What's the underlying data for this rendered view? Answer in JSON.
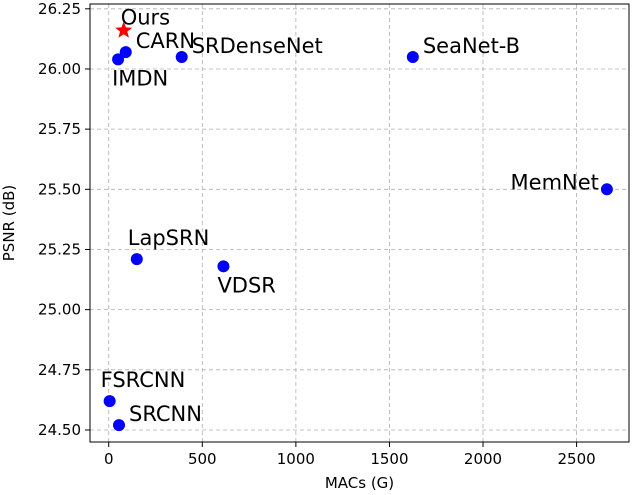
{
  "chart_data": {
    "type": "scatter",
    "xlabel": "MACs (G)",
    "ylabel": "PSNR (dB)",
    "xlim": [
      -100,
      2780
    ],
    "ylim": [
      24.45,
      26.27
    ],
    "xticks": [
      0,
      500,
      1000,
      1500,
      2000,
      2500
    ],
    "yticks": [
      24.5,
      24.75,
      25.0,
      25.25,
      25.5,
      25.75,
      26.0,
      26.25
    ],
    "xtick_labels": [
      "0",
      "500",
      "1000",
      "1500",
      "2000",
      "2500"
    ],
    "ytick_labels": [
      "24.50",
      "24.75",
      "25.00",
      "25.25",
      "25.50",
      "25.75",
      "26.00",
      "26.25"
    ],
    "grid": true,
    "points": [
      {
        "label": "Ours",
        "x": 80,
        "y": 26.16,
        "marker": "star",
        "color": "#ff0000",
        "label_pos": "above-right"
      },
      {
        "label": "CARN",
        "x": 91,
        "y": 26.07,
        "marker": "circle",
        "color": "#0000ff",
        "label_pos": "right"
      },
      {
        "label": "IMDN",
        "x": 50,
        "y": 26.04,
        "marker": "circle",
        "color": "#0000ff",
        "label_pos": "below"
      },
      {
        "label": "SRDenseNet",
        "x": 390,
        "y": 26.05,
        "marker": "circle",
        "color": "#0000ff",
        "label_pos": "right"
      },
      {
        "label": "SeaNet-B",
        "x": 1625,
        "y": 26.05,
        "marker": "circle",
        "color": "#0000ff",
        "label_pos": "right"
      },
      {
        "label": "MemNet",
        "x": 2662,
        "y": 25.5,
        "marker": "circle",
        "color": "#0000ff",
        "label_pos": "left"
      },
      {
        "label": "LapSRN",
        "x": 150,
        "y": 25.21,
        "marker": "circle",
        "color": "#0000ff",
        "label_pos": "above"
      },
      {
        "label": "VDSR",
        "x": 613,
        "y": 25.18,
        "marker": "circle",
        "color": "#0000ff",
        "label_pos": "below"
      },
      {
        "label": "FSRCNN",
        "x": 5,
        "y": 24.62,
        "marker": "circle",
        "color": "#0000ff",
        "label_pos": "above"
      },
      {
        "label": "SRCNN",
        "x": 55,
        "y": 24.52,
        "marker": "circle",
        "color": "#0000ff",
        "label_pos": "right"
      }
    ]
  }
}
